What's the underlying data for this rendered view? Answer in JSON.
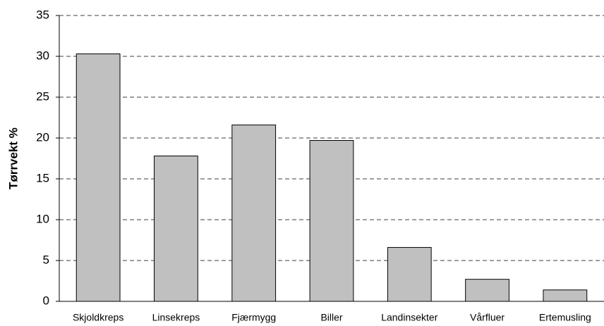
{
  "chart_data": {
    "type": "bar",
    "y_label": "Tørrvekt %",
    "categories": [
      "Skjoldkreps",
      "Linsekreps",
      "Fjærmygg",
      "Biller",
      "Landinsekter",
      "Vårfluer",
      "Ertemusling"
    ],
    "values": [
      30.3,
      17.8,
      21.6,
      19.7,
      6.6,
      2.7,
      1.4
    ],
    "color": "#c0c0c0",
    "ylim": [
      0,
      35
    ],
    "yticks": [
      0,
      5,
      10,
      15,
      20,
      25,
      30,
      35
    ],
    "grid": true
  }
}
